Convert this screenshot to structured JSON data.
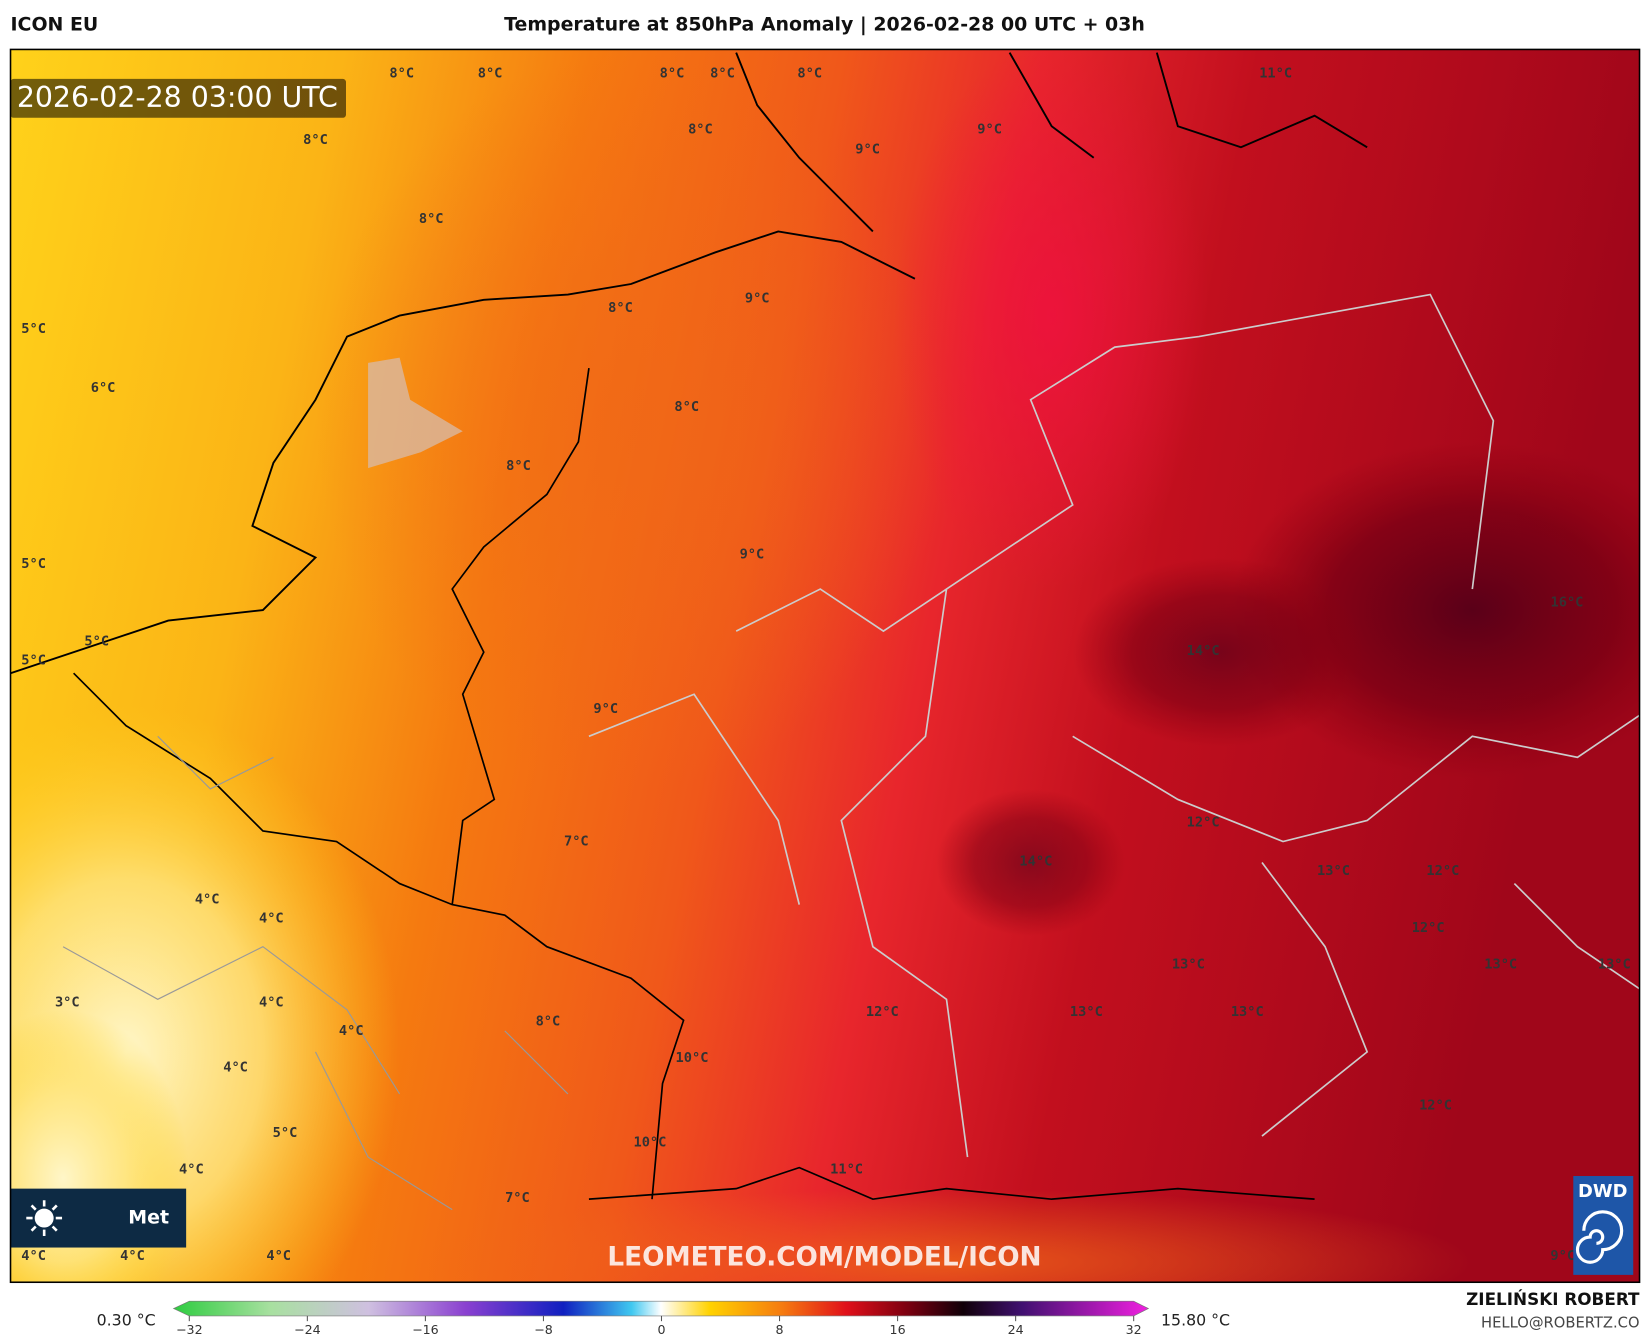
{
  "header": {
    "model": "ICON EU",
    "title": "Temperature at 850hPa Anomaly | 2026-02-28 00 UTC + 03h"
  },
  "map": {
    "timestamp": "2026-02-28 03:00 UTC",
    "watermark": "LEOMETEO.COM/MODEL/ICON",
    "logo_text": "Met",
    "provider": "DWD",
    "labels": [
      "8°C",
      "8°C",
      "8°C",
      "8°C",
      "8°C",
      "8°C",
      "8°C",
      "8°C",
      "8°C",
      "8°C",
      "8°C",
      "9°C",
      "9°C",
      "9°C",
      "9°C",
      "9°C",
      "11°C",
      "5°C",
      "5°C",
      "5°C",
      "5°C",
      "5°C",
      "6°C",
      "16°C",
      "14°C",
      "14°C",
      "12°C",
      "12°C",
      "12°C",
      "12°C",
      "12°C",
      "13°C",
      "13°C",
      "13°C",
      "13°C",
      "13°C",
      "13°C",
      "7°C",
      "7°C",
      "4°C",
      "4°C",
      "4°C",
      "4°C",
      "4°C",
      "4°C",
      "4°C",
      "4°C",
      "4°C",
      "3°C",
      "8°C",
      "10°C",
      "10°C",
      "11°C",
      "9°C"
    ]
  },
  "colorbar": {
    "min_label": "0.30 °C",
    "max_label": "15.80 °C",
    "ticks": [
      {
        "value": -32,
        "label": "−32"
      },
      {
        "value": -24,
        "label": "−24"
      },
      {
        "value": -16,
        "label": "−16"
      },
      {
        "value": -8,
        "label": "−8"
      },
      0,
      8,
      16,
      24,
      32
    ]
  },
  "footer": {
    "author": "ZIELIŃSKI ROBERT",
    "email": "HELLO@ROBERTZ.CO"
  }
}
